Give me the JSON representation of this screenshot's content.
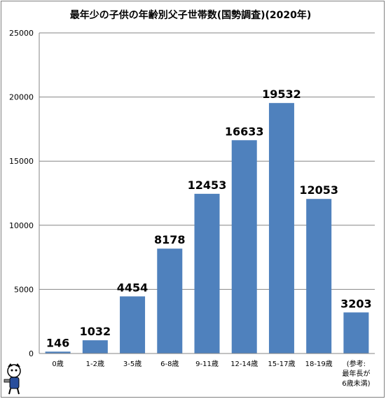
{
  "chart_data": {
    "type": "bar",
    "title": "最年少の子供の年齢別父子世帯数(国勢調査)(2020年)",
    "categories": [
      "0歳",
      "1-2歳",
      "3-5歳",
      "6-8歳",
      "9-11歳",
      "12-14歳",
      "15-17歳",
      "18-19歳",
      "(参考:\n最年長が\n6歳未満)"
    ],
    "values": [
      146,
      1032,
      4454,
      8178,
      12453,
      16633,
      19532,
      12053,
      3203
    ],
    "data_labels": [
      "146",
      "1032",
      "4454",
      "8178",
      "12453",
      "16633",
      "19532",
      "12053",
      "3203"
    ],
    "yticks": [
      "0",
      "5000",
      "10000",
      "15000",
      "20000",
      "25000"
    ],
    "ylim": [
      0,
      25000
    ],
    "grid": true,
    "bar_color": "#4F81BD",
    "grid_color": "#868686"
  }
}
